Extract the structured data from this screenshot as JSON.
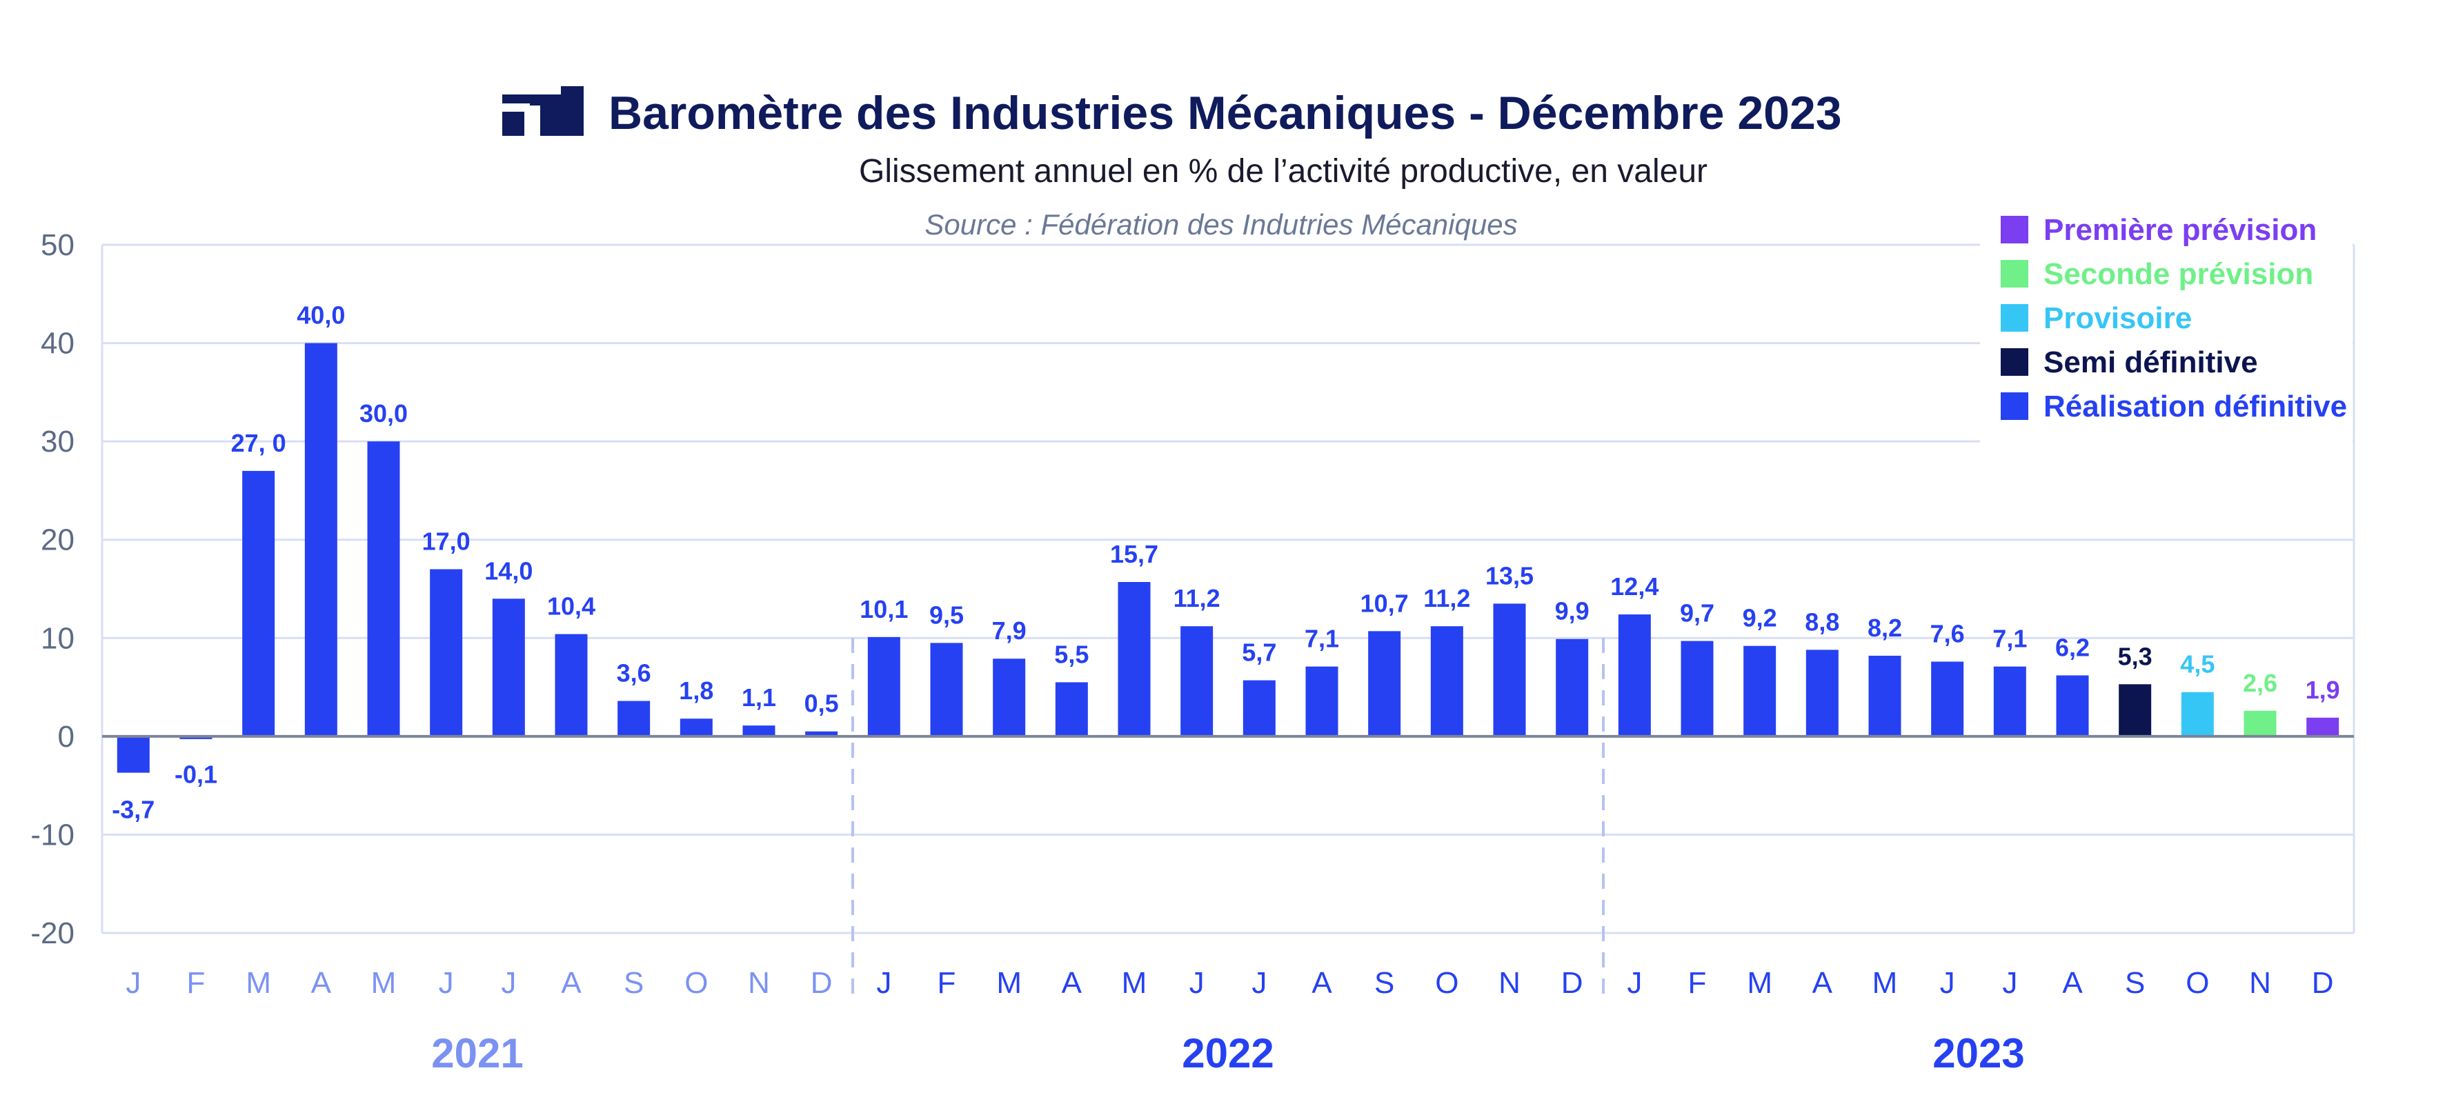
{
  "header": {
    "title": "Baromètre des Industries Mécaniques - Décembre 2023",
    "subtitle": "Glissement annuel en % de l’activité productive, en valeur",
    "source": "Source : Fédération des Indutries Mécaniques",
    "logo": "fim-logo-icon"
  },
  "colors": {
    "realisation_definitive": "#2641f2",
    "semi_definitive": "#0c1550",
    "provisoire": "#36c6f5",
    "seconde_prevision": "#6ff088",
    "premiere_prevision": "#7b3ef0",
    "year_2021": "#7b92f2",
    "year_2022_2023": "#2641f2",
    "title": "#0f1b5c"
  },
  "legend": {
    "placement": "top-right",
    "items": [
      {
        "label": "Première prévision",
        "status": "premiere_prevision"
      },
      {
        "label": "Seconde prévision",
        "status": "seconde_prevision"
      },
      {
        "label": "Provisoire",
        "status": "provisoire"
      },
      {
        "label": "Semi définitive",
        "status": "semi_definitive"
      },
      {
        "label": "Réalisation définitive",
        "status": "realisation_definitive"
      }
    ]
  },
  "chart_data": {
    "type": "bar",
    "title": "Baromètre des Industries Mécaniques - Décembre 2023",
    "subtitle": "Glissement annuel en % de l’activité productive, en valeur",
    "ylim": [
      -20,
      50
    ],
    "yticks": [
      -20,
      -10,
      0,
      10,
      20,
      30,
      40,
      50
    ],
    "grid": true,
    "legend_placement": "top-right",
    "years": [
      "2021",
      "2022",
      "2023"
    ],
    "categories": [
      "J",
      "F",
      "M",
      "A",
      "M",
      "J",
      "J",
      "A",
      "S",
      "O",
      "N",
      "D",
      "J",
      "F",
      "M",
      "A",
      "M",
      "J",
      "J",
      "A",
      "S",
      "O",
      "N",
      "D",
      "J",
      "F",
      "M",
      "A",
      "M",
      "J",
      "J",
      "A",
      "S",
      "O",
      "N",
      "D"
    ],
    "values": [
      -3.7,
      -0.1,
      27.0,
      40.0,
      30.0,
      17.0,
      14.0,
      10.4,
      3.6,
      1.8,
      1.1,
      0.5,
      10.1,
      9.5,
      7.9,
      5.5,
      15.7,
      11.2,
      5.7,
      7.1,
      10.7,
      11.2,
      13.5,
      9.9,
      12.4,
      9.7,
      9.2,
      8.8,
      8.2,
      7.6,
      7.1,
      6.2,
      5.3,
      4.5,
      2.6,
      1.9
    ],
    "labels": [
      "-3,7",
      "-0,1",
      "27, 0",
      "40,0",
      "30,0",
      "17,0",
      "14,0",
      "10,4",
      "3,6",
      "1,8",
      "1,1",
      "0,5",
      "10,1",
      "9,5",
      "7,9",
      "5,5",
      "15,7",
      "11,2",
      "5,7",
      "7,1",
      "10,7",
      "11,2",
      "13,5",
      "9,9",
      "12,4",
      "9,7",
      "9,2",
      "8,8",
      "8,2",
      "7,6",
      "7,1",
      "6,2",
      "5,3",
      "4,5",
      "2,6",
      "1,9"
    ],
    "status": [
      "realisation_definitive",
      "realisation_definitive",
      "realisation_definitive",
      "realisation_definitive",
      "realisation_definitive",
      "realisation_definitive",
      "realisation_definitive",
      "realisation_definitive",
      "realisation_definitive",
      "realisation_definitive",
      "realisation_definitive",
      "realisation_definitive",
      "realisation_definitive",
      "realisation_definitive",
      "realisation_definitive",
      "realisation_definitive",
      "realisation_definitive",
      "realisation_definitive",
      "realisation_definitive",
      "realisation_definitive",
      "realisation_definitive",
      "realisation_definitive",
      "realisation_definitive",
      "realisation_definitive",
      "realisation_definitive",
      "realisation_definitive",
      "realisation_definitive",
      "realisation_definitive",
      "realisation_definitive",
      "realisation_definitive",
      "realisation_definitive",
      "realisation_definitive",
      "semi_definitive",
      "provisoire",
      "seconde_prevision",
      "premiere_prevision"
    ]
  }
}
